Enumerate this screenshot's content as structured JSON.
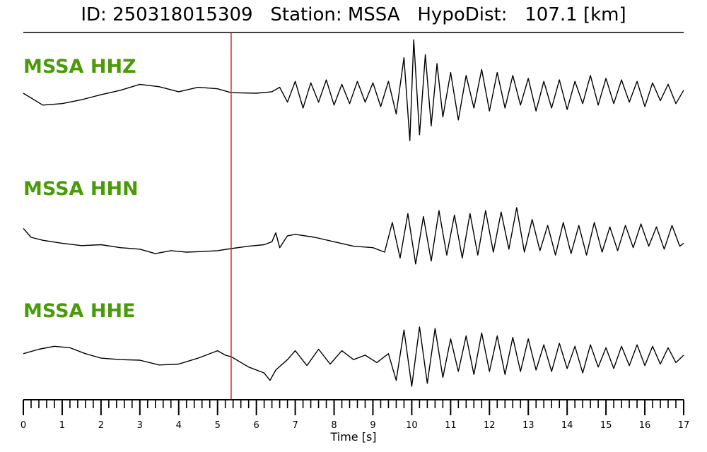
{
  "title": {
    "id_label": "ID:",
    "id_value": "250318015309",
    "station_label": "Station:",
    "station_value": "MSSA",
    "dist_label": "HypoDist:",
    "dist_value": "107.1",
    "dist_unit": "[km]"
  },
  "colors": {
    "label": "#4a9a0a",
    "trace": "#000000",
    "pick": "#e02020"
  },
  "chart_data": {
    "type": "line",
    "xlabel": "Time [s]",
    "xlim": [
      0,
      17
    ],
    "x_ticks": [
      0,
      1,
      2,
      3,
      4,
      5,
      6,
      7,
      8,
      9,
      10,
      11,
      12,
      13,
      14,
      15,
      16,
      17
    ],
    "minor_tick_step": 0.2,
    "pick_time": 5.35,
    "grid": false,
    "legend": "none",
    "series": [
      {
        "name": "MSSA HHZ",
        "points": [
          [
            0,
            0.0
          ],
          [
            0.5,
            -0.4
          ],
          [
            1,
            -0.35
          ],
          [
            1.5,
            -0.22
          ],
          [
            2,
            -0.05
          ],
          [
            2.5,
            0.1
          ],
          [
            3,
            0.3
          ],
          [
            3.5,
            0.22
          ],
          [
            4,
            0.05
          ],
          [
            4.5,
            0.2
          ],
          [
            5,
            0.15
          ],
          [
            5.35,
            0.02
          ],
          [
            6,
            0.0
          ],
          [
            6.4,
            0.05
          ],
          [
            6.6,
            0.2
          ],
          [
            6.8,
            -0.3
          ],
          [
            7,
            0.4
          ],
          [
            7.2,
            -0.5
          ],
          [
            7.4,
            0.35
          ],
          [
            7.6,
            -0.3
          ],
          [
            7.8,
            0.45
          ],
          [
            8,
            -0.4
          ],
          [
            8.2,
            0.3
          ],
          [
            8.4,
            -0.35
          ],
          [
            8.6,
            0.4
          ],
          [
            8.8,
            -0.3
          ],
          [
            9,
            0.35
          ],
          [
            9.2,
            -0.45
          ],
          [
            9.4,
            0.4
          ],
          [
            9.6,
            -0.7
          ],
          [
            9.8,
            1.2
          ],
          [
            9.95,
            -1.6
          ],
          [
            10.05,
            1.8
          ],
          [
            10.2,
            -1.4
          ],
          [
            10.35,
            1.3
          ],
          [
            10.5,
            -1.1
          ],
          [
            10.65,
            1.0
          ],
          [
            10.8,
            -0.8
          ],
          [
            11,
            0.7
          ],
          [
            11.2,
            -0.9
          ],
          [
            11.4,
            0.6
          ],
          [
            11.6,
            -0.5
          ],
          [
            11.8,
            0.8
          ],
          [
            12,
            -0.6
          ],
          [
            12.2,
            0.7
          ],
          [
            12.4,
            -0.5
          ],
          [
            12.6,
            0.6
          ],
          [
            12.8,
            -0.4
          ],
          [
            13,
            0.5
          ],
          [
            13.2,
            -0.6
          ],
          [
            13.4,
            0.4
          ],
          [
            13.6,
            -0.5
          ],
          [
            13.8,
            0.45
          ],
          [
            14,
            -0.55
          ],
          [
            14.2,
            0.4
          ],
          [
            14.4,
            -0.35
          ],
          [
            14.6,
            0.6
          ],
          [
            14.8,
            -0.4
          ],
          [
            15,
            0.5
          ],
          [
            15.2,
            -0.35
          ],
          [
            15.4,
            0.45
          ],
          [
            15.6,
            -0.3
          ],
          [
            15.8,
            0.4
          ],
          [
            16,
            -0.45
          ],
          [
            16.2,
            0.35
          ],
          [
            16.4,
            -0.25
          ],
          [
            16.6,
            0.3
          ],
          [
            16.8,
            -0.35
          ],
          [
            17,
            0.1
          ]
        ]
      },
      {
        "name": "MSSA HHN",
        "points": [
          [
            0,
            0.3
          ],
          [
            0.2,
            0.0
          ],
          [
            0.5,
            -0.1
          ],
          [
            1,
            -0.2
          ],
          [
            1.5,
            -0.28
          ],
          [
            2,
            -0.25
          ],
          [
            2.5,
            -0.35
          ],
          [
            3,
            -0.4
          ],
          [
            3.4,
            -0.55
          ],
          [
            3.8,
            -0.45
          ],
          [
            4.2,
            -0.5
          ],
          [
            4.6,
            -0.48
          ],
          [
            5,
            -0.45
          ],
          [
            5.35,
            -0.38
          ],
          [
            5.8,
            -0.3
          ],
          [
            6.2,
            -0.25
          ],
          [
            6.4,
            -0.15
          ],
          [
            6.5,
            0.15
          ],
          [
            6.6,
            -0.35
          ],
          [
            6.8,
            0.05
          ],
          [
            7,
            0.1
          ],
          [
            7.5,
            0.0
          ],
          [
            8,
            -0.15
          ],
          [
            8.5,
            -0.3
          ],
          [
            9,
            -0.35
          ],
          [
            9.3,
            -0.5
          ],
          [
            9.5,
            0.5
          ],
          [
            9.7,
            -0.7
          ],
          [
            9.9,
            0.8
          ],
          [
            10.1,
            -0.9
          ],
          [
            10.3,
            0.7
          ],
          [
            10.5,
            -0.8
          ],
          [
            10.7,
            0.9
          ],
          [
            10.9,
            -0.6
          ],
          [
            11.1,
            0.75
          ],
          [
            11.3,
            -0.7
          ],
          [
            11.5,
            0.8
          ],
          [
            11.7,
            -0.6
          ],
          [
            11.9,
            0.9
          ],
          [
            12.1,
            -0.5
          ],
          [
            12.3,
            0.85
          ],
          [
            12.5,
            -0.4
          ],
          [
            12.7,
            1.0
          ],
          [
            12.9,
            -0.5
          ],
          [
            13.1,
            0.6
          ],
          [
            13.3,
            -0.45
          ],
          [
            13.5,
            0.4
          ],
          [
            13.7,
            -0.6
          ],
          [
            13.9,
            0.5
          ],
          [
            14.1,
            -0.55
          ],
          [
            14.3,
            0.4
          ],
          [
            14.5,
            -0.6
          ],
          [
            14.7,
            0.5
          ],
          [
            14.9,
            -0.5
          ],
          [
            15.1,
            0.35
          ],
          [
            15.3,
            -0.45
          ],
          [
            15.5,
            0.4
          ],
          [
            15.7,
            -0.35
          ],
          [
            15.9,
            0.45
          ],
          [
            16.1,
            -0.3
          ],
          [
            16.3,
            0.35
          ],
          [
            16.5,
            -0.4
          ],
          [
            16.7,
            0.4
          ],
          [
            16.9,
            -0.3
          ],
          [
            17,
            -0.2
          ]
        ]
      },
      {
        "name": "MSSA HHE",
        "points": [
          [
            0,
            0.1
          ],
          [
            0.4,
            0.25
          ],
          [
            0.8,
            0.35
          ],
          [
            1.2,
            0.3
          ],
          [
            1.6,
            0.1
          ],
          [
            2,
            -0.05
          ],
          [
            2.5,
            -0.1
          ],
          [
            3,
            -0.12
          ],
          [
            3.5,
            -0.28
          ],
          [
            4,
            -0.25
          ],
          [
            4.5,
            -0.05
          ],
          [
            5,
            0.2
          ],
          [
            5.2,
            0.05
          ],
          [
            5.35,
            0.0
          ],
          [
            5.8,
            -0.35
          ],
          [
            6.2,
            -0.55
          ],
          [
            6.35,
            -0.8
          ],
          [
            6.5,
            -0.45
          ],
          [
            6.8,
            -0.1
          ],
          [
            7,
            0.2
          ],
          [
            7.3,
            -0.3
          ],
          [
            7.6,
            0.25
          ],
          [
            7.9,
            -0.25
          ],
          [
            8.2,
            0.2
          ],
          [
            8.5,
            -0.1
          ],
          [
            8.8,
            0.05
          ],
          [
            9.1,
            -0.2
          ],
          [
            9.4,
            0.1
          ],
          [
            9.6,
            -0.8
          ],
          [
            9.8,
            0.9
          ],
          [
            10,
            -1.0
          ],
          [
            10.2,
            1.0
          ],
          [
            10.4,
            -0.9
          ],
          [
            10.6,
            0.95
          ],
          [
            10.8,
            -0.7
          ],
          [
            11,
            0.6
          ],
          [
            11.2,
            -0.5
          ],
          [
            11.4,
            0.7
          ],
          [
            11.6,
            -0.6
          ],
          [
            11.8,
            0.8
          ],
          [
            12,
            -0.5
          ],
          [
            12.2,
            0.7
          ],
          [
            12.4,
            -0.6
          ],
          [
            12.6,
            0.65
          ],
          [
            12.8,
            -0.5
          ],
          [
            13,
            0.6
          ],
          [
            13.2,
            -0.45
          ],
          [
            13.4,
            0.4
          ],
          [
            13.6,
            -0.5
          ],
          [
            13.8,
            0.45
          ],
          [
            14,
            -0.4
          ],
          [
            14.2,
            0.35
          ],
          [
            14.4,
            -0.55
          ],
          [
            14.6,
            0.4
          ],
          [
            14.8,
            -0.35
          ],
          [
            15,
            0.3
          ],
          [
            15.2,
            -0.4
          ],
          [
            15.4,
            0.35
          ],
          [
            15.6,
            -0.3
          ],
          [
            15.8,
            0.4
          ],
          [
            16,
            -0.3
          ],
          [
            16.2,
            0.35
          ],
          [
            16.4,
            -0.25
          ],
          [
            16.6,
            0.3
          ],
          [
            16.8,
            -0.2
          ],
          [
            17,
            0.05
          ]
        ]
      }
    ]
  }
}
